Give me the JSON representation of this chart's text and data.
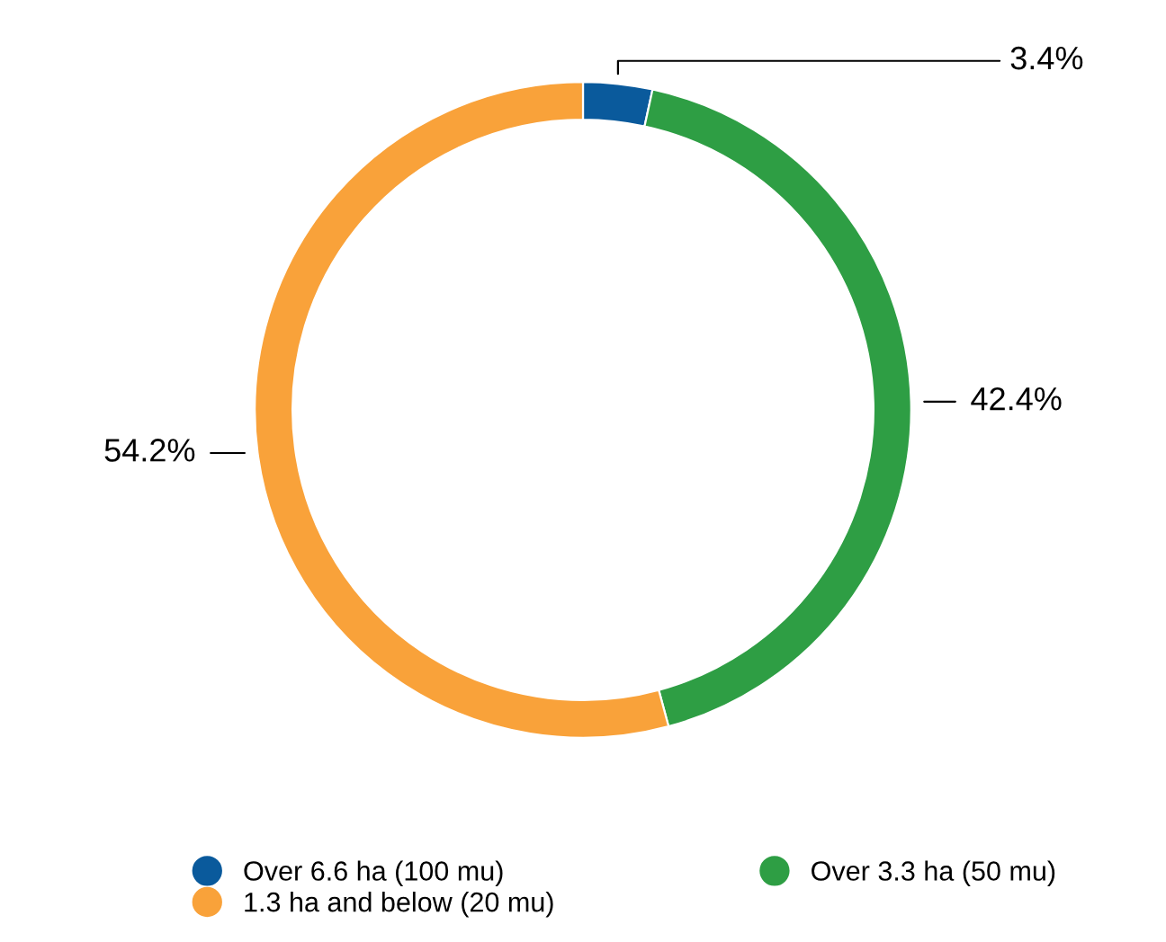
{
  "chart_data": {
    "type": "donut",
    "categories": [
      "Over 6.6 ha (100 mu)",
      "Over 3.3 ha (50 mu)",
      "1.3 ha and below (20 mu)"
    ],
    "values": [
      3.4,
      42.4,
      54.2
    ],
    "colors": [
      "#0a5a9c",
      "#2e9e44",
      "#f9a23a"
    ],
    "value_labels": [
      "3.4%",
      "42.4%",
      "54.2%"
    ],
    "legend": "bottom"
  }
}
